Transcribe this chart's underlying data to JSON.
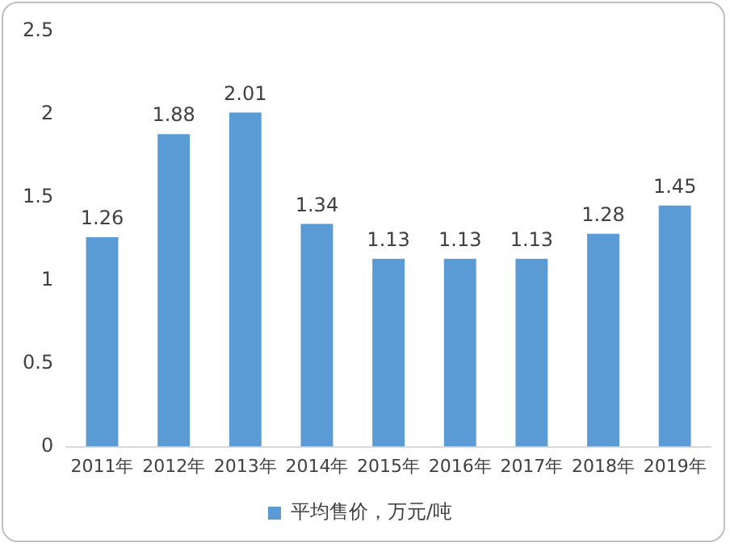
{
  "chart_data": {
    "type": "bar",
    "categories": [
      "2011年",
      "2012年",
      "2013年",
      "2014年",
      "2015年",
      "2016年",
      "2017年",
      "2018年",
      "2019年"
    ],
    "series": [
      {
        "name": "平均售价，万元/吨",
        "color": "#5b9bd5",
        "values": [
          1.26,
          1.88,
          2.01,
          1.34,
          1.13,
          1.13,
          1.13,
          1.28,
          1.45
        ]
      }
    ],
    "ylim": [
      0,
      2.5
    ],
    "yticks": [
      0,
      0.5,
      1,
      1.5,
      2,
      2.5
    ],
    "grid": false,
    "legend": "bottom",
    "data_labels": true
  }
}
